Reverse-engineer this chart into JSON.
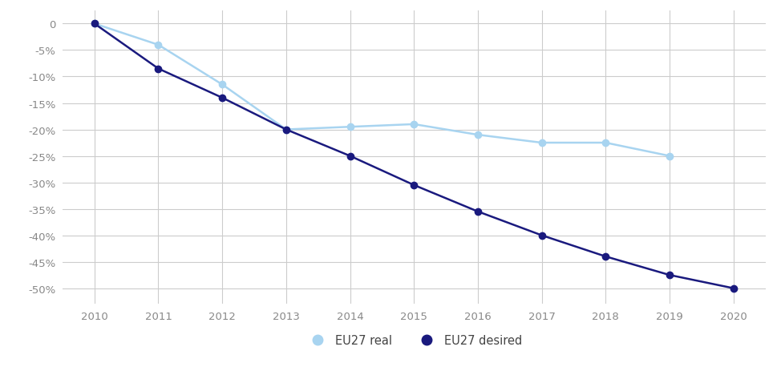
{
  "years": [
    2010,
    2011,
    2012,
    2013,
    2014,
    2015,
    2016,
    2017,
    2018,
    2019,
    2020
  ],
  "eu27_real": [
    0,
    -4.0,
    -11.5,
    -20.0,
    -19.5,
    -19.0,
    -21.0,
    -22.5,
    -22.5,
    -25.0,
    null
  ],
  "eu27_desired": [
    0,
    -8.5,
    -14.0,
    -20.0,
    -25.0,
    -30.5,
    -35.5,
    -40.0,
    -44.0,
    -47.5,
    -50.0
  ],
  "color_real": "#a8d4f0",
  "color_desired": "#1a1a7e",
  "ylim": [
    -53,
    2.5
  ],
  "yticks": [
    0,
    -5,
    -10,
    -15,
    -20,
    -25,
    -30,
    -35,
    -40,
    -45,
    -50
  ],
  "ytick_labels": [
    "0",
    "-5%",
    "-10%",
    "-15%",
    "-20%",
    "-25%",
    "-30%",
    "-35%",
    "-40%",
    "-45%",
    "-50%"
  ],
  "xlim": [
    2009.5,
    2020.5
  ],
  "xticks": [
    2010,
    2011,
    2012,
    2013,
    2014,
    2015,
    2016,
    2017,
    2018,
    2019,
    2020
  ],
  "legend_real": "EU27 real",
  "legend_desired": "EU27 desired",
  "background_color": "#ffffff",
  "grid_color": "#cccccc",
  "tick_color": "#888888",
  "label_fontsize": 9.5
}
